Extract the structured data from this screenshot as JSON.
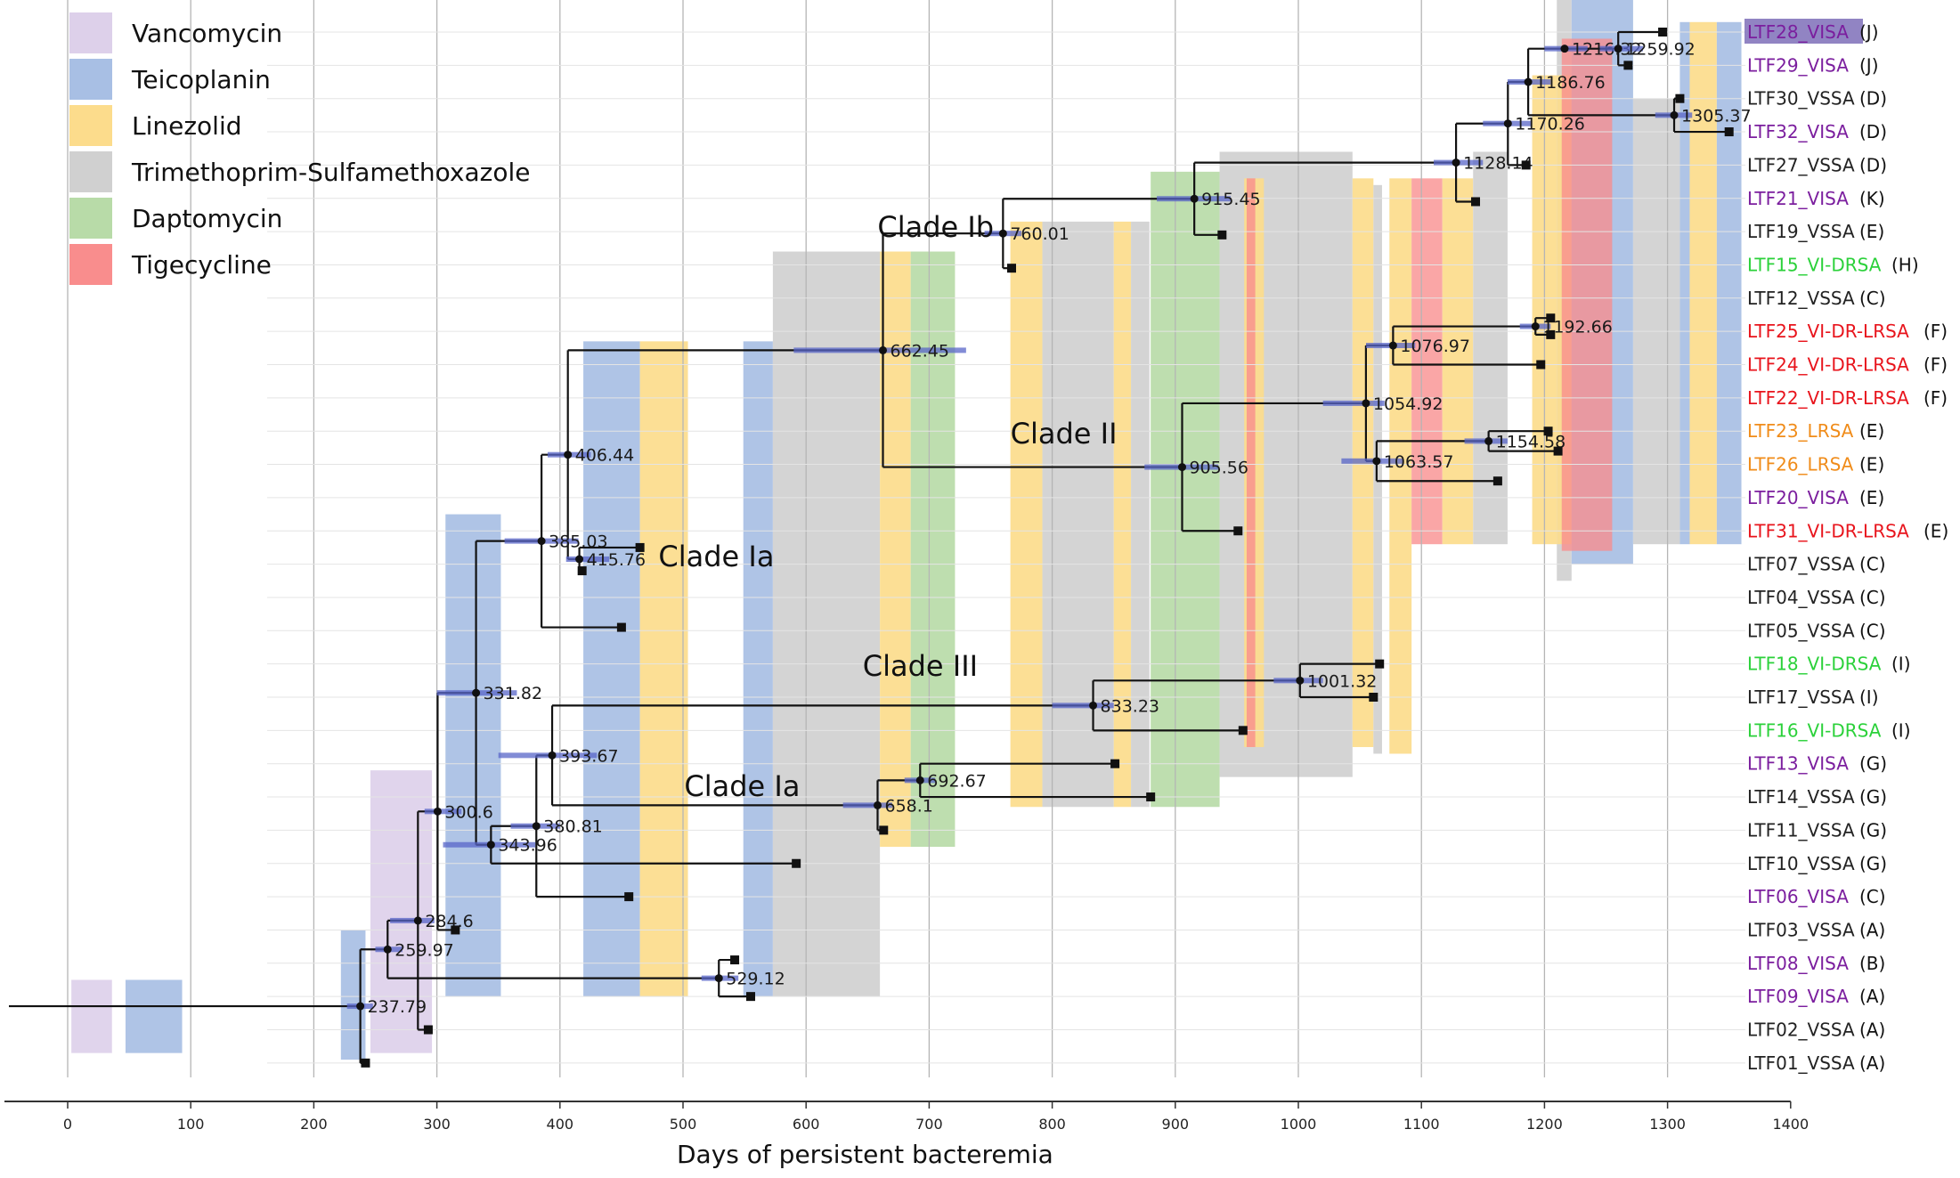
{
  "chart_data": {
    "type": "phylogenetic-tree",
    "xlabel": "Days of persistent bacteremia",
    "xlim": [
      -50,
      1400
    ],
    "x_ticks": [
      0,
      100,
      200,
      300,
      400,
      500,
      600,
      700,
      800,
      900,
      1000,
      1100,
      1200,
      1300,
      1400
    ],
    "legend": [
      {
        "label": "Vancomycin",
        "color": "#ddd0ea"
      },
      {
        "label": "Teicoplanin",
        "color": "#a8bfe4"
      },
      {
        "label": "Linezolid",
        "color": "#fcdc8c"
      },
      {
        "label": "Trimethoprim-Sulfamethoxazole",
        "color": "#d0d0d0"
      },
      {
        "label": "Daptomycin",
        "color": "#b8dba8"
      },
      {
        "label": "Tigecycline",
        "color": "#f98d8d"
      }
    ],
    "clades": [
      {
        "label": "Clade Ia",
        "x": 480,
        "row": 15.8
      },
      {
        "label": "Clade Ia",
        "x": 501,
        "row": 22.7
      },
      {
        "label": "Clade Ib",
        "x": 658,
        "row": 5.9
      },
      {
        "label": "Clade II",
        "x": 766,
        "row": 12.1
      },
      {
        "label": "Clade III",
        "x": 646,
        "row": 19.1
      }
    ],
    "tips": [
      {
        "name": "LTF28_VISA",
        "group": "(J)",
        "color": "#7b1e9e",
        "highlight": true
      },
      {
        "name": "LTF29_VISA",
        "group": "(J)",
        "color": "#7b1e9e"
      },
      {
        "name": "LTF30_VSSA",
        "group": "(D)",
        "color": "#222222"
      },
      {
        "name": "LTF32_VISA",
        "group": "(D)",
        "color": "#7b1e9e"
      },
      {
        "name": "LTF27_VSSA",
        "group": "(D)",
        "color": "#222222"
      },
      {
        "name": "LTF21_VISA",
        "group": "(K)",
        "color": "#7b1e9e"
      },
      {
        "name": "LTF19_VSSA",
        "group": "(E)",
        "color": "#222222"
      },
      {
        "name": "LTF15_VI-DRSA",
        "group": "(H)",
        "color": "#2bd13a"
      },
      {
        "name": "LTF12_VSSA",
        "group": "(C)",
        "color": "#222222"
      },
      {
        "name": "LTF25_VI-DR-LRSA",
        "group": "(F)",
        "color": "#e8141c"
      },
      {
        "name": "LTF24_VI-DR-LRSA",
        "group": "(F)",
        "color": "#e8141c"
      },
      {
        "name": "LTF22_VI-DR-LRSA",
        "group": "(F)",
        "color": "#e8141c"
      },
      {
        "name": "LTF23_LRSA",
        "group": "(E)",
        "color": "#f08c1a"
      },
      {
        "name": "LTF26_LRSA",
        "group": "(E)",
        "color": "#f08c1a"
      },
      {
        "name": "LTF20_VISA",
        "group": "(E)",
        "color": "#7b1e9e"
      },
      {
        "name": "LTF31_VI-DR-LRSA",
        "group": "(E)",
        "color": "#e8141c"
      },
      {
        "name": "LTF07_VSSA",
        "group": "(C)",
        "color": "#222222"
      },
      {
        "name": "LTF04_VSSA",
        "group": "(C)",
        "color": "#222222"
      },
      {
        "name": "LTF05_VSSA",
        "group": "(C)",
        "color": "#222222"
      },
      {
        "name": "LTF18_VI-DRSA",
        "group": "(I)",
        "color": "#2bd13a"
      },
      {
        "name": "LTF17_VSSA",
        "group": "(I)",
        "color": "#222222"
      },
      {
        "name": "LTF16_VI-DRSA",
        "group": "(I)",
        "color": "#2bd13a"
      },
      {
        "name": "LTF13_VISA",
        "group": "(G)",
        "color": "#7b1e9e"
      },
      {
        "name": "LTF14_VSSA",
        "group": "(G)",
        "color": "#222222"
      },
      {
        "name": "LTF11_VSSA",
        "group": "(G)",
        "color": "#222222"
      },
      {
        "name": "LTF10_VSSA",
        "group": "(G)",
        "color": "#222222"
      },
      {
        "name": "LTF06_VISA",
        "group": "(C)",
        "color": "#7b1e9e"
      },
      {
        "name": "LTF03_VSSA",
        "group": "(A)",
        "color": "#222222"
      },
      {
        "name": "LTF08_VISA",
        "group": "(B)",
        "color": "#7b1e9e"
      },
      {
        "name": "LTF09_VISA",
        "group": "(A)",
        "color": "#7b1e9e"
      },
      {
        "name": "LTF02_VSSA",
        "group": "(A)",
        "color": "#222222"
      },
      {
        "name": "LTF01_VSSA",
        "group": "(A)",
        "color": "#222222"
      }
    ],
    "treatment_bands": [
      {
        "drug": "Vancomycin",
        "x0": 3,
        "x1": 36,
        "row0": 28.5,
        "row1": 30.7
      },
      {
        "drug": "Teicoplanin",
        "x0": 47,
        "x1": 93,
        "row0": 28.5,
        "row1": 30.7
      },
      {
        "drug": "Teicoplanin",
        "x0": 222,
        "x1": 242,
        "row0": 27.0,
        "row1": 30.9
      },
      {
        "drug": "Vancomycin",
        "x0": 246,
        "x1": 296,
        "row0": 22.2,
        "row1": 30.7
      },
      {
        "drug": "Teicoplanin",
        "x0": 307,
        "x1": 352,
        "row0": 14.5,
        "row1": 29.0
      },
      {
        "drug": "Teicoplanin",
        "x0": 419,
        "x1": 465,
        "row0": 9.3,
        "row1": 29.0
      },
      {
        "drug": "Linezolid",
        "x0": 465,
        "x1": 504,
        "row0": 9.3,
        "row1": 29.0
      },
      {
        "drug": "Teicoplanin",
        "x0": 549,
        "x1": 573,
        "row0": 9.3,
        "row1": 29.0
      },
      {
        "drug": "Trimethoprim-Sulfamethoxazole",
        "x0": 573,
        "x1": 660,
        "row0": 6.6,
        "row1": 29.0
      },
      {
        "drug": "Linezolid",
        "x0": 660,
        "x1": 685,
        "row0": 6.6,
        "row1": 24.5
      },
      {
        "drug": "Daptomycin",
        "x0": 685,
        "x1": 721,
        "row0": 6.6,
        "row1": 24.5
      },
      {
        "drug": "Linezolid",
        "x0": 766,
        "x1": 792,
        "row0": 5.7,
        "row1": 23.3
      },
      {
        "drug": "Trimethoprim-Sulfamethoxazole",
        "x0": 792,
        "x1": 850,
        "row0": 5.7,
        "row1": 23.3
      },
      {
        "drug": "Linezolid",
        "x0": 850,
        "x1": 864,
        "row0": 5.7,
        "row1": 23.3
      },
      {
        "drug": "Trimethoprim-Sulfamethoxazole",
        "x0": 864,
        "x1": 879,
        "row0": 5.7,
        "row1": 23.3
      },
      {
        "drug": "Daptomycin",
        "x0": 880,
        "x1": 936,
        "row0": 4.2,
        "row1": 23.3
      },
      {
        "drug": "Trimethoprim-Sulfamethoxazole",
        "x0": 936,
        "x1": 1044,
        "row0": 3.6,
        "row1": 22.4
      },
      {
        "drug": "Linezolid",
        "x0": 956,
        "x1": 972,
        "row0": 4.4,
        "row1": 21.5
      },
      {
        "drug": "Tigecycline",
        "x0": 958,
        "x1": 965,
        "row0": 4.4,
        "row1": 21.5
      },
      {
        "drug": "Linezolid",
        "x0": 1044,
        "x1": 1061,
        "row0": 4.4,
        "row1": 21.5
      },
      {
        "drug": "Trimethoprim-Sulfamethoxazole",
        "x0": 1061,
        "x1": 1068,
        "row0": 4.6,
        "row1": 21.7
      },
      {
        "drug": "Linezolid",
        "x0": 1074,
        "x1": 1092,
        "row0": 4.4,
        "row1": 21.7
      },
      {
        "drug": "Tigecycline",
        "x0": 1092,
        "x1": 1117,
        "row0": 4.4,
        "row1": 15.4
      },
      {
        "drug": "Linezolid",
        "x0": 1117,
        "x1": 1142,
        "row0": 4.4,
        "row1": 15.4
      },
      {
        "drug": "Trimethoprim-Sulfamethoxazole",
        "x0": 1142,
        "x1": 1170,
        "row0": 3.6,
        "row1": 15.4
      },
      {
        "drug": "Linezolid",
        "x0": 1190,
        "x1": 1210,
        "row0": 1.3,
        "row1": 15.4
      },
      {
        "drug": "Trimethoprim-Sulfamethoxazole",
        "x0": 1210,
        "x1": 1222,
        "row0": -1.0,
        "row1": 16.5
      },
      {
        "drug": "Linezolid",
        "x0": 1210,
        "x1": 1222,
        "row0": 1.3,
        "row1": 15.4
      },
      {
        "drug": "Teicoplanin",
        "x0": 1222,
        "x1": 1272,
        "row0": -1.0,
        "row1": 16.0
      },
      {
        "drug": "Tigecycline",
        "x0": 1214,
        "x1": 1255,
        "row0": 0.2,
        "row1": 15.6
      },
      {
        "drug": "Trimethoprim-Sulfamethoxazole",
        "x0": 1272,
        "x1": 1310,
        "row0": 2.0,
        "row1": 15.4
      },
      {
        "drug": "Teicoplanin",
        "x0": 1310,
        "x1": 1318,
        "row0": -0.3,
        "row1": 15.4
      },
      {
        "drug": "Linezolid",
        "x0": 1318,
        "x1": 1340,
        "row0": -0.3,
        "row1": 15.4
      },
      {
        "drug": "Teicoplanin",
        "x0": 1340,
        "x1": 1360,
        "row0": -0.3,
        "row1": 15.4
      }
    ],
    "internal_nodes": [
      {
        "id": "root",
        "x": 237.79,
        "label": "237.79",
        "children": [
          "n259",
          "t31"
        ],
        "ci": [
          227,
          248
        ]
      },
      {
        "id": "n259",
        "x": 259.97,
        "label": "259.97",
        "children": [
          "n284",
          "n529"
        ],
        "ci": [
          250,
          272
        ]
      },
      {
        "id": "n284",
        "x": 284.6,
        "label": "284.6",
        "children": [
          "n300",
          "t30"
        ],
        "ci": [
          262,
          298
        ]
      },
      {
        "id": "n300",
        "x": 300.6,
        "label": "300.6",
        "children": [
          "n331",
          "t27"
        ],
        "ci": [
          290,
          320
        ]
      },
      {
        "id": "n331",
        "x": 331.82,
        "label": "331.82",
        "children": [
          "n385",
          "n343"
        ],
        "ci": [
          300,
          365
        ]
      },
      {
        "id": "n385",
        "x": 385.03,
        "label": "385.03",
        "children": [
          "n406",
          "t18"
        ],
        "ci": [
          355,
          415
        ]
      },
      {
        "id": "n406",
        "x": 406.44,
        "label": "406.44",
        "children": [
          "n662",
          "n415"
        ],
        "ci": [
          390,
          425
        ]
      },
      {
        "id": "n415",
        "x": 415.76,
        "label": "415.76",
        "children": [
          "t16",
          "t17"
        ],
        "ci": [
          405,
          440
        ]
      },
      {
        "id": "n662",
        "x": 662.45,
        "label": "662.45",
        "children": [
          "n760",
          "n905"
        ],
        "ci": [
          590,
          730
        ]
      },
      {
        "id": "n760",
        "x": 760.01,
        "label": "760.01",
        "children": [
          "n915",
          "t8"
        ],
        "ci": [
          745,
          775
        ]
      },
      {
        "id": "n915",
        "x": 915.45,
        "label": "915.45",
        "children": [
          "n1128",
          "t7"
        ],
        "ci": [
          885,
          945
        ]
      },
      {
        "id": "n1128",
        "x": 1128.14,
        "label": "1128.14",
        "children": [
          "n1170",
          "t6"
        ],
        "ci": [
          1110,
          1150
        ]
      },
      {
        "id": "n1170",
        "x": 1170.26,
        "label": "1170.26",
        "children": [
          "n1186",
          "t5"
        ],
        "ci": [
          1150,
          1190
        ]
      },
      {
        "id": "n1186",
        "x": 1186.76,
        "label": "1186.76",
        "children": [
          "n1216",
          "n1305"
        ],
        "ci": [
          1170,
          1205
        ]
      },
      {
        "id": "n1216",
        "x": 1216.32,
        "label": "1216.32",
        "children": [
          "n1259"
        ],
        "ci": [
          1200,
          1235
        ]
      },
      {
        "id": "n1259",
        "x": 1259.92,
        "label": "1259.92",
        "children": [
          "t1",
          "t2"
        ],
        "ci": [
          1245,
          1280
        ]
      },
      {
        "id": "n1305",
        "x": 1305.37,
        "label": "1305.37",
        "children": [
          "t3",
          "t4"
        ],
        "ci": [
          1290,
          1320
        ]
      },
      {
        "id": "n905",
        "x": 905.56,
        "label": "905.56",
        "children": [
          "n1054",
          "t16b"
        ],
        "ci": [
          875,
          935
        ]
      },
      {
        "id": "n1054",
        "x": 1054.92,
        "label": "1054.92",
        "children": [
          "n1076",
          "n1063"
        ],
        "ci": [
          1020,
          1070
        ]
      },
      {
        "id": "n1076",
        "x": 1076.97,
        "label": "1076.97",
        "children": [
          "n1192",
          "t12"
        ],
        "ci": [
          1055,
          1095
        ]
      },
      {
        "id": "n1192",
        "x": 1192.66,
        "label": "1192.66",
        "children": [
          "t10",
          "t11"
        ],
        "ci": [
          1180,
          1205
        ]
      },
      {
        "id": "n1063",
        "x": 1063.57,
        "label": "1063.57",
        "children": [
          "n1154",
          "t15"
        ],
        "ci": [
          1035,
          1085
        ]
      },
      {
        "id": "n1154",
        "x": 1154.58,
        "label": "1154.58",
        "children": [
          "t13",
          "t14"
        ],
        "ci": [
          1135,
          1170
        ]
      },
      {
        "id": "n343",
        "x": 343.96,
        "label": "343.96",
        "children": [
          "n380",
          "t26"
        ],
        "ci": [
          305,
          380
        ]
      },
      {
        "id": "n380",
        "x": 380.81,
        "label": "380.81",
        "children": [
          "n393",
          "t25"
        ],
        "ci": [
          360,
          400
        ]
      },
      {
        "id": "n393",
        "x": 393.67,
        "label": "393.67",
        "children": [
          "n833",
          "n658"
        ],
        "ci": [
          350,
          430
        ]
      },
      {
        "id": "n833",
        "x": 833.23,
        "label": "833.23",
        "children": [
          "n1001",
          "t22"
        ],
        "ci": [
          800,
          850
        ]
      },
      {
        "id": "n1001",
        "x": 1001.32,
        "label": "1001.32",
        "children": [
          "t20",
          "t21"
        ],
        "ci": [
          980,
          1020
        ]
      },
      {
        "id": "n658",
        "x": 658.1,
        "label": "658.1",
        "children": [
          "n692",
          "t25b"
        ],
        "ci": [
          630,
          670
        ]
      },
      {
        "id": "n692",
        "x": 692.67,
        "label": "692.67",
        "children": [
          "t23",
          "t24"
        ],
        "ci": [
          680,
          705
        ]
      },
      {
        "id": "n529",
        "x": 529.12,
        "label": "529.12",
        "children": [
          "t28",
          "t29"
        ],
        "ci": [
          515,
          545
        ]
      }
    ],
    "tip_marks": [
      {
        "id": "t1",
        "x": 1296,
        "row": 0
      },
      {
        "id": "t2",
        "x": 1268,
        "row": 1
      },
      {
        "id": "t3",
        "x": 1310,
        "row": 2
      },
      {
        "id": "t4",
        "x": 1350,
        "row": 3
      },
      {
        "id": "t5",
        "x": 1185,
        "row": 4
      },
      {
        "id": "t6",
        "x": 1144,
        "row": 5.1
      },
      {
        "id": "t7",
        "x": 938,
        "row": 6.1
      },
      {
        "id": "t8",
        "x": 767,
        "row": 7.1
      },
      {
        "id": "t10",
        "x": 1205,
        "row": 8.6
      },
      {
        "id": "t11",
        "x": 1205,
        "row": 9.1
      },
      {
        "id": "t12",
        "x": 1197,
        "row": 10.0
      },
      {
        "id": "t13",
        "x": 1203,
        "row": 12.0
      },
      {
        "id": "t14",
        "x": 1211,
        "row": 12.6
      },
      {
        "id": "t15",
        "x": 1162,
        "row": 13.5
      },
      {
        "id": "t16",
        "x": 465,
        "row": 15.5
      },
      {
        "id": "t17",
        "x": 418,
        "row": 16.2
      },
      {
        "id": "t18",
        "x": 450,
        "row": 17.9
      },
      {
        "id": "t20",
        "x": 1066,
        "row": 19.0
      },
      {
        "id": "t21",
        "x": 1061,
        "row": 20.0
      },
      {
        "id": "t22",
        "x": 955,
        "row": 21.0
      },
      {
        "id": "t23",
        "x": 851,
        "row": 22.0
      },
      {
        "id": "t24",
        "x": 880,
        "row": 23.0
      },
      {
        "id": "t25b",
        "x": 663,
        "row": 24.0
      },
      {
        "id": "t26",
        "x": 592,
        "row": 25.0
      },
      {
        "id": "t25",
        "x": 456,
        "row": 26.0
      },
      {
        "id": "t27",
        "x": 315,
        "row": 27.0
      },
      {
        "id": "t28",
        "x": 542,
        "row": 27.9
      },
      {
        "id": "t29",
        "x": 555,
        "row": 29.0
      },
      {
        "id": "t30",
        "x": 293,
        "row": 30.0
      },
      {
        "id": "t31",
        "x": 242,
        "row": 31.0
      },
      {
        "id": "t16b",
        "x": 951,
        "row": 15.0
      }
    ]
  }
}
